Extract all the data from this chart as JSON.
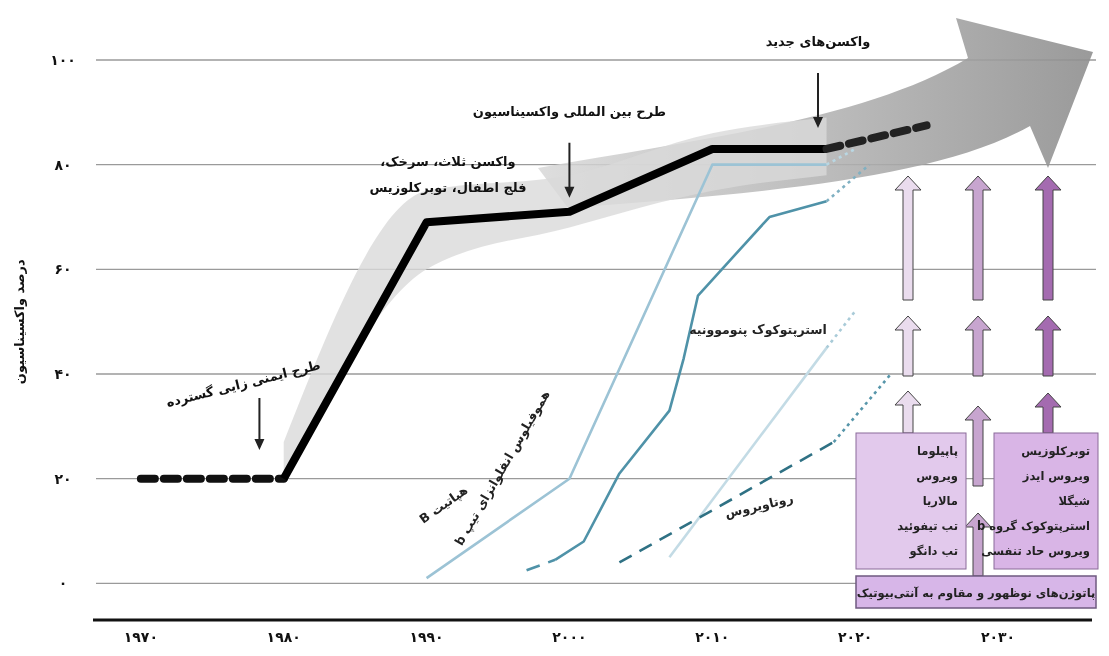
{
  "chart_data": {
    "type": "line",
    "ylabel": "درصد واکسیناسیون",
    "xlim": [
      1967,
      2037
    ],
    "xticks": [
      {
        "value": 1970,
        "label": "۱۹۷۰"
      },
      {
        "value": 1980,
        "label": "۱۹۸۰"
      },
      {
        "value": 1990,
        "label": "۱۹۹۰"
      },
      {
        "value": 2000,
        "label": "۲۰۰۰"
      },
      {
        "value": 2010,
        "label": "۲۰۱۰"
      },
      {
        "value": 2020,
        "label": "۲۰۲۰"
      },
      {
        "value": 2030,
        "label": "۲۰۳۰"
      }
    ],
    "ylim": [
      -7,
      100
    ],
    "yticks": [
      {
        "value": 0,
        "label": "۰"
      },
      {
        "value": 20,
        "label": "۲۰"
      },
      {
        "value": 40,
        "label": "۴۰"
      },
      {
        "value": 60,
        "label": "۶۰"
      },
      {
        "value": 80,
        "label": "۸۰"
      },
      {
        "value": 100,
        "label": "۱۰۰"
      }
    ],
    "grid": "y",
    "marker": "none",
    "series": [
      {
        "color": "#111111",
        "line_style": "dashed",
        "x": [
          1970,
          1980
        ],
        "values": [
          20,
          20
        ]
      },
      {
        "color": "#000000",
        "line_style": "solid",
        "x": [
          1980,
          1990,
          2000,
          2010,
          2018
        ],
        "values": [
          20,
          69,
          71,
          83,
          83
        ],
        "lower": [
          19,
          60,
          68,
          75,
          78
        ],
        "upper": [
          27,
          75,
          78,
          86,
          89
        ]
      },
      {
        "color": "#222222",
        "line_style": "dashed",
        "x": [
          2018,
          2025
        ],
        "values": [
          83,
          87.5
        ]
      },
      {
        "name": "هپاتیت B",
        "color": "#9cc3d5",
        "line_style": "solid",
        "x": [
          1990,
          2000,
          2010,
          2018
        ],
        "values": [
          1,
          20,
          80,
          80
        ]
      },
      {
        "color": "#b9d7e3",
        "line_style": "dotted",
        "x": [
          2018,
          2020
        ],
        "values": [
          80,
          83
        ]
      },
      {
        "color": "#4f92a8",
        "line_style": "dashed",
        "x": [
          1997,
          1999
        ],
        "values": [
          2.5,
          4.5
        ]
      },
      {
        "name": "هموفیلوس انفلوانزای تیپ b",
        "color": "#4f92a8",
        "line_style": "solid",
        "x": [
          1999,
          2001,
          2003.5,
          2007,
          2008,
          2009,
          2014,
          2018
        ],
        "values": [
          4.5,
          8,
          21,
          33,
          43,
          55,
          70,
          73
        ]
      },
      {
        "color": "#7fb0c2",
        "line_style": "dotted",
        "x": [
          2018,
          2021
        ],
        "values": [
          73,
          80
        ]
      },
      {
        "name": "استرپتوکوک پنوموونیه",
        "color": "#c3dbe5",
        "line_style": "solid",
        "x": [
          2007,
          2018
        ],
        "values": [
          5,
          45
        ]
      },
      {
        "color": "#a9cbd8",
        "line_style": "dotted",
        "x": [
          2018,
          2020
        ],
        "values": [
          45,
          52
        ]
      },
      {
        "name": "روتاویروس",
        "color": "#2f7184",
        "line_style": "dashed",
        "x": [
          2003.5,
          2018.5
        ],
        "values": [
          4,
          27
        ]
      },
      {
        "color": "#5796aa",
        "line_style": "dotted",
        "x": [
          2018.5,
          2022.5
        ],
        "values": [
          27,
          40
        ]
      }
    ],
    "annotations": [
      "طرح ایمنی زایی گسترده",
      "واکسن ثلاث، سرخک،\nفلج اطفال، توبرکلوزیس",
      "طرح بین المللی واکسیناسیون",
      "واکسن‌های جدید",
      "پاپیلوما\nویروس\nمالاریا\nتب تیفوئید\nتب دانگو",
      "توبرکلوزیس\nویروس ایدز\nشیگلا\nاسترپتوکوک گروه b\nویروس حاد تنفسی",
      "پاتوژن‌های نوظهور و مقاوم به آنتی‌بیوتیک"
    ]
  }
}
